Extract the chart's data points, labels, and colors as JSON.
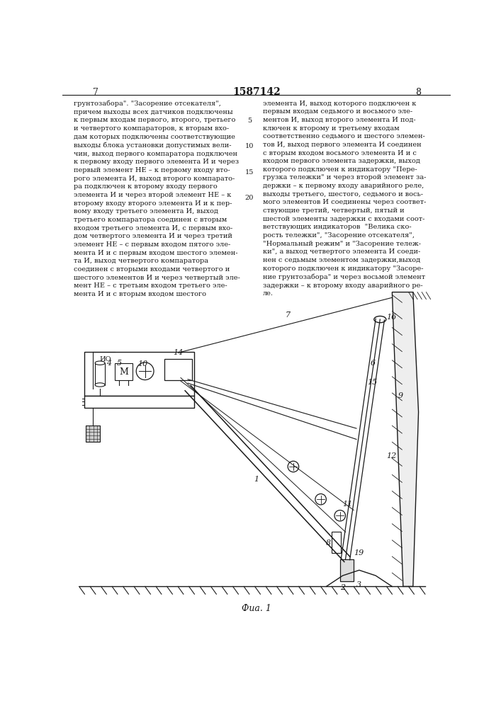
{
  "title": "1587142",
  "page_left": "7",
  "page_right": "8",
  "caption": "Фиа. 1",
  "bg_color": "#ffffff",
  "line_color": "#1a1a1a",
  "text_color": "#1a1a1a",
  "text_left": "грунтозабора\". \"Засорение отсекателя\",\nпричем выходы всех датчиков подключены\nк первым входам первого, второго, третьего\nи четвертого компараторов, к вторым вхо-\nдам которых подключены соответствующие\nвыходы блока установки допустимых вели-\nчин, выход первого компаратора подключен\nк первому входу первого элемента И и через\nпервый элемент НЕ – к первому входу вто-\nрого элемента И, выход второго компарато-\nра подключен к второму входу первого\nэлемента И и через второй элемент НЕ – к\nвторому входу второго элемента И и к пер-\nвому входу третьего элемента И, выход\nтретьего компаратора соединен с вторым\nвходом третьего элемента И, с первым вхо-\nдом четвертого элемента И и через третий\nэлемент НЕ – с первым входом пятого эле-\nмента И и с первым входом шестого элемен-\nта И, выход четвертого компаратора\nсоединен с вторыми входами четвертого и\nшестого элементов И и через четвертый эле-\nмент НЕ – с третьим входом третьего эле-\nмента И и с вторым входом шестого",
  "text_right": "элемента И, выход которого подключен к\nпервым входам седьмого и восьмого эле-\nментов И, выход второго элемента И под-\nключен к второму и третьему входам\nсоответственно седьмого и шестого элемен-\nтов И, выход первого элемента И соединен\nс вторым входом восьмого элемента И и с\nвходом первого элемента задержки, выход\nкоторого подключен к индикатору \"Пере-\nгрузка тележки\" и через второй элемент за-\nдержки – к первому входу аварийного реле,\nвыходы третьего, шестого, седьмого и вось-\nмого элементов И соединены через соответ-\nствующие третий, четвертый, пятый и\nшестой элементы задержки с входами соот-\nветствующих индикаторов  \"Велика ско-\nрость тележки\", \"Засорение отсекателя\",\n\"Нормальный режим\" и \"Засорение тележ-\nки\", а выход четвертого элемента И соеди-\nнен с седьмым элементом задержки,выход\nкоторого подключен к индикатору \"Засоре-\nние грунтозабора\" и через восьмой элемент\nзадержки – к второму входу аварийного ре-\nле."
}
